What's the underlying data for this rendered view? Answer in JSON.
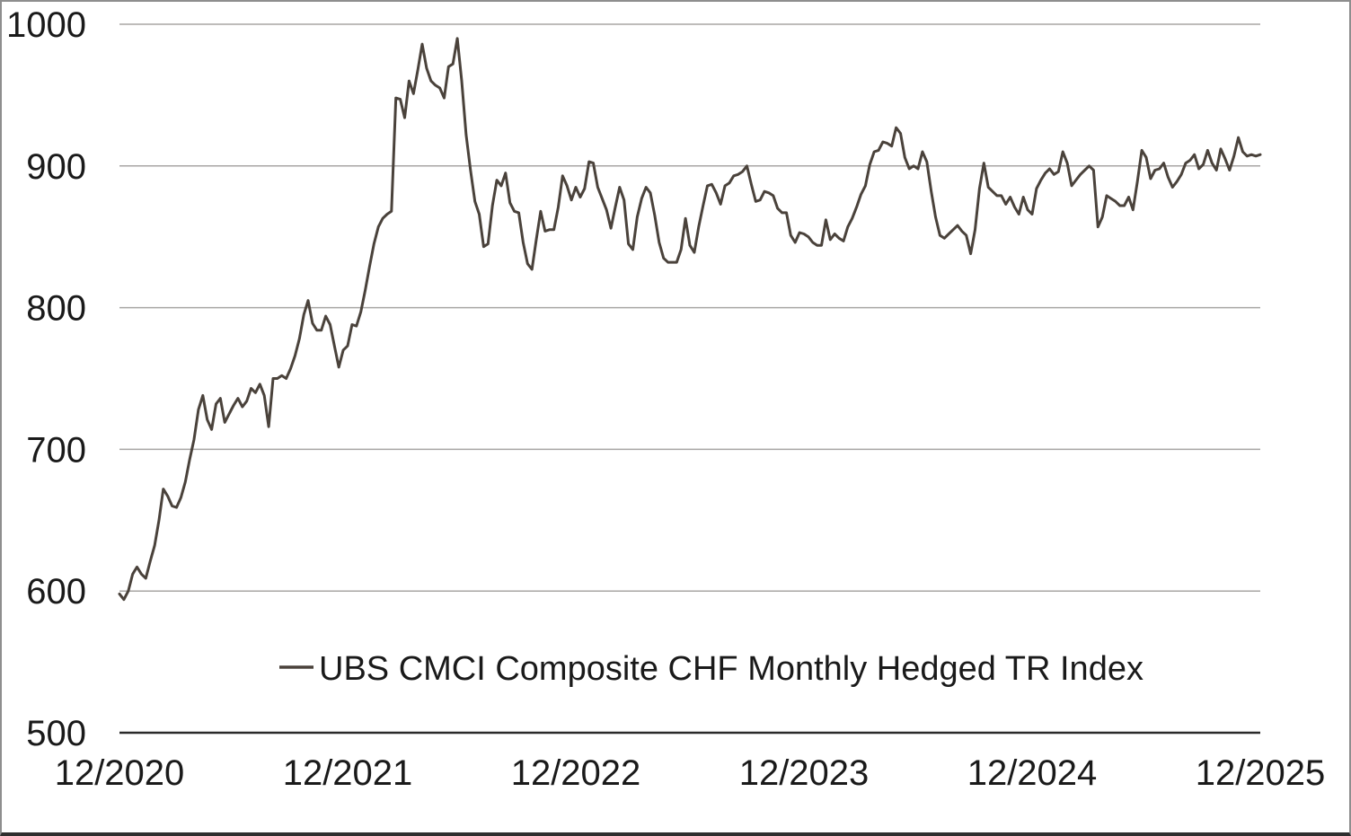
{
  "chart_data": {
    "type": "line",
    "title": "",
    "legend_position": "bottom-center",
    "grid": "horizontal-only",
    "x_ticks": [
      "12/2020",
      "12/2021",
      "12/2022",
      "12/2023",
      "12/2024",
      "12/2025"
    ],
    "y_ticks": [
      "500",
      "600",
      "700",
      "800",
      "900",
      "1000"
    ],
    "ylim": [
      500,
      1000
    ],
    "xlabel": "",
    "ylabel": "",
    "series": [
      {
        "name": "UBS CMCI Composite CHF Monthly Hedged TR Index",
        "frequency": "weekly",
        "start": "12/2020",
        "end": "12/2025",
        "values": [
          598,
          594,
          600,
          612,
          617,
          612,
          609,
          621,
          632,
          650,
          672,
          667,
          660,
          659,
          666,
          677,
          693,
          707,
          728,
          738,
          721,
          714,
          732,
          736,
          719,
          725,
          731,
          736,
          730,
          734,
          743,
          740,
          746,
          738,
          716,
          750,
          750,
          752,
          750,
          757,
          766,
          778,
          795,
          805,
          789,
          784,
          784,
          794,
          788,
          773,
          758,
          770,
          773,
          788,
          787,
          797,
          812,
          829,
          845,
          857,
          863,
          866,
          868,
          948,
          947,
          934,
          960,
          951,
          968,
          986,
          969,
          960,
          957,
          955,
          948,
          970,
          972,
          990,
          960,
          922,
          897,
          875,
          866,
          843,
          845,
          872,
          890,
          886,
          895,
          874,
          868,
          867,
          846,
          831,
          827,
          848,
          868,
          854,
          855,
          855,
          871,
          893,
          886,
          876,
          885,
          878,
          884,
          903,
          902,
          885,
          877,
          869,
          856,
          871,
          885,
          876,
          845,
          841,
          864,
          877,
          885,
          881,
          865,
          846,
          835,
          832,
          832,
          832,
          841,
          863,
          844,
          839,
          857,
          872,
          886,
          887,
          881,
          873,
          886,
          888,
          893,
          894,
          896,
          900,
          887,
          875,
          876,
          882,
          881,
          879,
          870,
          867,
          867,
          851,
          846,
          853,
          852,
          850,
          846,
          844,
          844,
          862,
          848,
          852,
          849,
          847,
          857,
          863,
          871,
          880,
          886,
          901,
          910,
          911,
          917,
          916,
          914,
          927,
          923,
          906,
          898,
          900,
          898,
          910,
          903,
          882,
          864,
          851,
          849,
          852,
          855,
          858,
          854,
          851,
          838,
          855,
          884,
          902,
          885,
          882,
          879,
          879,
          873,
          878,
          871,
          866,
          878,
          869,
          866,
          884,
          890,
          895,
          898,
          894,
          896,
          910,
          902,
          886,
          890,
          894,
          897,
          900,
          897,
          857,
          864,
          879,
          877,
          875,
          872,
          872,
          878,
          869,
          889,
          911,
          906,
          891,
          897,
          898,
          902,
          892,
          885,
          889,
          894,
          902,
          904,
          908,
          898,
          901,
          911,
          902,
          897,
          912,
          905,
          897,
          907,
          920,
          910,
          907,
          908,
          907,
          908
        ]
      }
    ]
  },
  "legend": {
    "label": "UBS CMCI Composite CHF Monthly Hedged TR Index"
  },
  "colors": {
    "line": "#4a423b",
    "grid": "#a8a6a4",
    "axis": "#2a2a2a",
    "text": "#1a1a1a",
    "frame": "#8e8e8e"
  }
}
